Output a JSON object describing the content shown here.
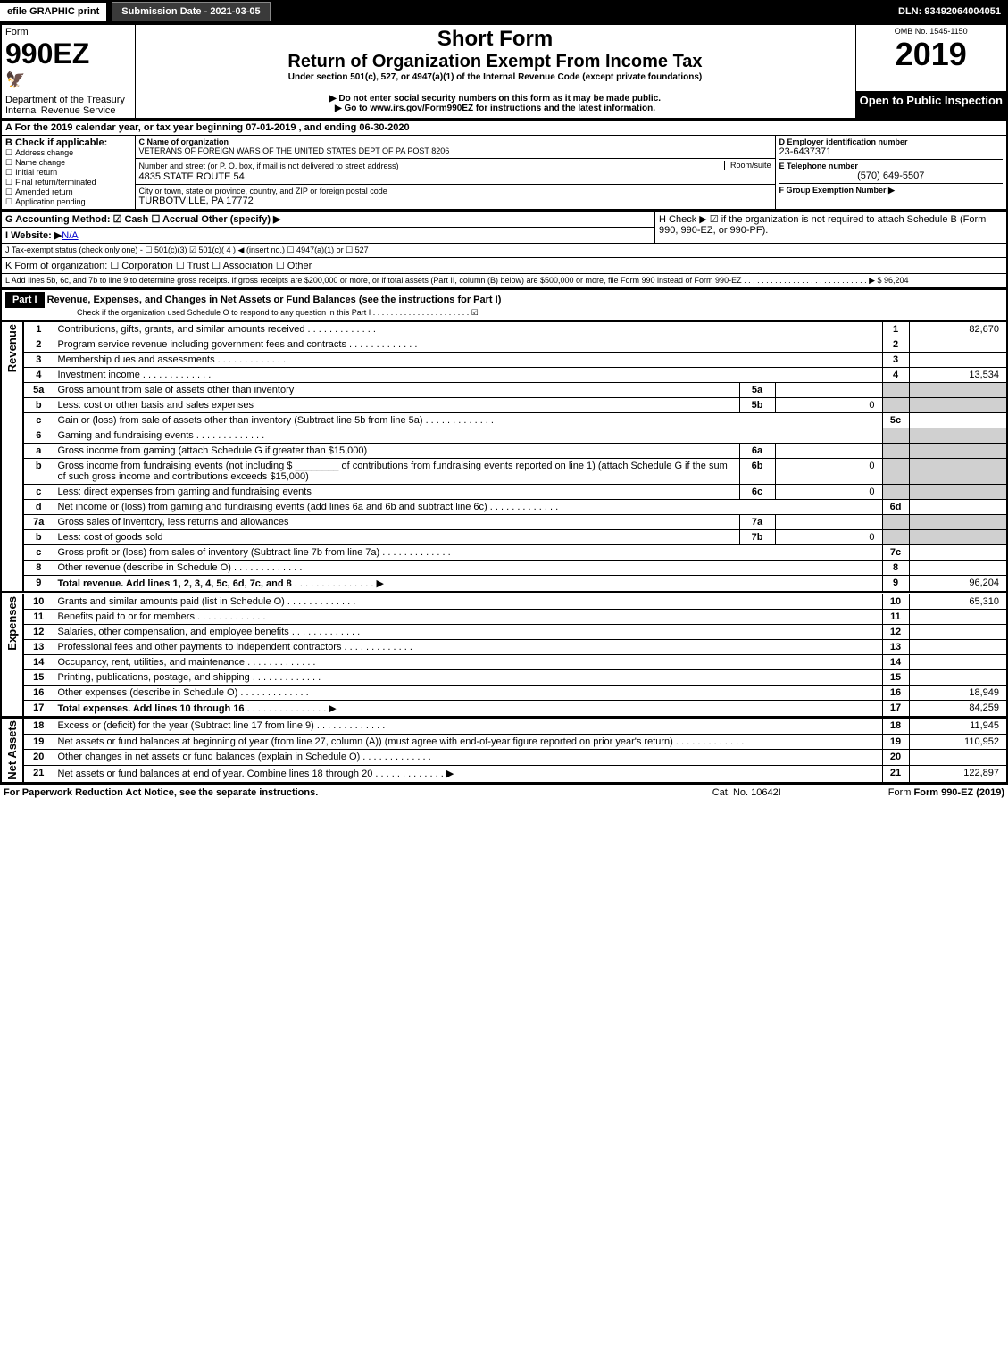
{
  "topbar": {
    "efile": "efile GRAPHIC print",
    "subdate_label": "Submission Date - 2021-03-05",
    "dln": "DLN: 93492064004051"
  },
  "header": {
    "form_word": "Form",
    "form_number": "990EZ",
    "dept": "Department of the Treasury",
    "irs": "Internal Revenue Service",
    "short_form": "Short Form",
    "title": "Return of Organization Exempt From Income Tax",
    "under": "Under section 501(c), 527, or 4947(a)(1) of the Internal Revenue Code (except private foundations)",
    "ssn_warn": "▶ Do not enter social security numbers on this form as it may be made public.",
    "goto": "▶ Go to www.irs.gov/Form990EZ for instructions and the latest information.",
    "omb": "OMB No. 1545-1150",
    "year": "2019",
    "open": "Open to Public Inspection"
  },
  "sectionA": {
    "a_line": "A For the 2019 calendar year, or tax year beginning 07-01-2019 , and ending 06-30-2020",
    "b_label": "B Check if applicable:",
    "b_opts": [
      "Address change",
      "Name change",
      "Initial return",
      "Final return/terminated",
      "Amended return",
      "Application pending"
    ],
    "c_label": "C Name of organization",
    "c_name": "VETERANS OF FOREIGN WARS OF THE UNITED STATES DEPT OF PA POST 8206",
    "c_addr_label": "Number and street (or P. O. box, if mail is not delivered to street address)",
    "c_addr": "4835 STATE ROUTE 54",
    "c_room": "Room/suite",
    "c_city_label": "City or town, state or province, country, and ZIP or foreign postal code",
    "c_city": "TURBOTVILLE, PA  17772",
    "d_label": "D Employer identification number",
    "d_val": "23-6437371",
    "e_label": "E Telephone number",
    "e_val": "(570) 649-5507",
    "f_label": "F Group Exemption Number ▶"
  },
  "sectionG": {
    "g": "G Accounting Method:  ☑ Cash  ☐ Accrual   Other (specify) ▶",
    "h": "H  Check ▶ ☑ if the organization is not required to attach Schedule B (Form 990, 990-EZ, or 990-PF).",
    "i": "I Website: ▶",
    "i_val": "N/A",
    "j": "J Tax-exempt status (check only one) - ☐ 501(c)(3) ☑ 501(c)( 4 ) ◀ (insert no.) ☐ 4947(a)(1) or ☐ 527",
    "k": "K Form of organization:   ☐ Corporation   ☐ Trust   ☐ Association   ☐ Other",
    "l": "L Add lines 5b, 6c, and 7b to line 9 to determine gross receipts. If gross receipts are $200,000 or more, or if total assets (Part II, column (B) below) are $500,000 or more, file Form 990 instead of Form 990-EZ  .  .  .  .  .  .  .  .  .  .  .  .  .  .  .  .  .  .  .  .  .  .  .  .  .  .  .  .  ▶ $ 96,204"
  },
  "part1": {
    "label": "Part I",
    "title": "Revenue, Expenses, and Changes in Net Assets or Fund Balances (see the instructions for Part I)",
    "check_line": "Check if the organization used Schedule O to respond to any question in this Part I  .  .  .  .  .  .  .  .  .  .  .  .  .  .  .  .  .  .  .  .  .  .  ☑"
  },
  "side_labels": {
    "revenue": "Revenue",
    "expenses": "Expenses",
    "netassets": "Net Assets"
  },
  "lines": [
    {
      "n": "1",
      "t": "Contributions, gifts, grants, and similar amounts received",
      "num": "1",
      "amt": "82,670"
    },
    {
      "n": "2",
      "t": "Program service revenue including government fees and contracts",
      "num": "2",
      "amt": ""
    },
    {
      "n": "3",
      "t": "Membership dues and assessments",
      "num": "3",
      "amt": ""
    },
    {
      "n": "4",
      "t": "Investment income",
      "num": "4",
      "amt": "13,534"
    },
    {
      "n": "5a",
      "t": "Gross amount from sale of assets other than inventory",
      "sub": "5a",
      "subamt": ""
    },
    {
      "n": "b",
      "t": "Less: cost or other basis and sales expenses",
      "sub": "5b",
      "subamt": "0"
    },
    {
      "n": "c",
      "t": "Gain or (loss) from sale of assets other than inventory (Subtract line 5b from line 5a)",
      "num": "5c",
      "amt": ""
    },
    {
      "n": "6",
      "t": "Gaming and fundraising events"
    },
    {
      "n": "a",
      "t": "Gross income from gaming (attach Schedule G if greater than $15,000)",
      "sub": "6a",
      "subamt": ""
    },
    {
      "n": "b",
      "t": "Gross income from fundraising events (not including $ ________ of contributions from fundraising events reported on line 1) (attach Schedule G if the sum of such gross income and contributions exceeds $15,000)",
      "sub": "6b",
      "subamt": "0"
    },
    {
      "n": "c",
      "t": "Less: direct expenses from gaming and fundraising events",
      "sub": "6c",
      "subamt": "0"
    },
    {
      "n": "d",
      "t": "Net income or (loss) from gaming and fundraising events (add lines 6a and 6b and subtract line 6c)",
      "num": "6d",
      "amt": ""
    },
    {
      "n": "7a",
      "t": "Gross sales of inventory, less returns and allowances",
      "sub": "7a",
      "subamt": ""
    },
    {
      "n": "b",
      "t": "Less: cost of goods sold",
      "sub": "7b",
      "subamt": "0"
    },
    {
      "n": "c",
      "t": "Gross profit or (loss) from sales of inventory (Subtract line 7b from line 7a)",
      "num": "7c",
      "amt": ""
    },
    {
      "n": "8",
      "t": "Other revenue (describe in Schedule O)",
      "num": "8",
      "amt": ""
    },
    {
      "n": "9",
      "t": "Total revenue. Add lines 1, 2, 3, 4, 5c, 6d, 7c, and 8",
      "num": "9",
      "amt": "96,204",
      "bold": true,
      "arrow": true
    }
  ],
  "expenses": [
    {
      "n": "10",
      "t": "Grants and similar amounts paid (list in Schedule O)",
      "num": "10",
      "amt": "65,310"
    },
    {
      "n": "11",
      "t": "Benefits paid to or for members",
      "num": "11",
      "amt": ""
    },
    {
      "n": "12",
      "t": "Salaries, other compensation, and employee benefits",
      "num": "12",
      "amt": ""
    },
    {
      "n": "13",
      "t": "Professional fees and other payments to independent contractors",
      "num": "13",
      "amt": ""
    },
    {
      "n": "14",
      "t": "Occupancy, rent, utilities, and maintenance",
      "num": "14",
      "amt": ""
    },
    {
      "n": "15",
      "t": "Printing, publications, postage, and shipping",
      "num": "15",
      "amt": ""
    },
    {
      "n": "16",
      "t": "Other expenses (describe in Schedule O)",
      "num": "16",
      "amt": "18,949"
    },
    {
      "n": "17",
      "t": "Total expenses. Add lines 10 through 16",
      "num": "17",
      "amt": "84,259",
      "bold": true,
      "arrow": true
    }
  ],
  "netassets": [
    {
      "n": "18",
      "t": "Excess or (deficit) for the year (Subtract line 17 from line 9)",
      "num": "18",
      "amt": "11,945"
    },
    {
      "n": "19",
      "t": "Net assets or fund balances at beginning of year (from line 27, column (A)) (must agree with end-of-year figure reported on prior year's return)",
      "num": "19",
      "amt": "110,952"
    },
    {
      "n": "20",
      "t": "Other changes in net assets or fund balances (explain in Schedule O)",
      "num": "20",
      "amt": ""
    },
    {
      "n": "21",
      "t": "Net assets or fund balances at end of year. Combine lines 18 through 20",
      "num": "21",
      "amt": "122,897",
      "arrow": true
    }
  ],
  "footer": {
    "left": "For Paperwork Reduction Act Notice, see the separate instructions.",
    "mid": "Cat. No. 10642I",
    "right": "Form 990-EZ (2019)"
  }
}
